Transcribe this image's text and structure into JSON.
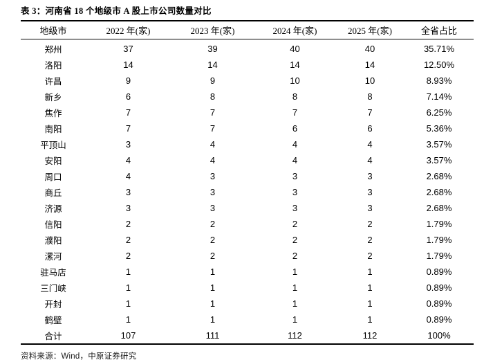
{
  "page": {
    "background_color": "#ffffff",
    "text_color": "#000000",
    "rule_color": "#000000"
  },
  "title": "表 3：河南省 18 个地级市 A 股上市公司数量对比",
  "table": {
    "columns": [
      "地级市",
      "2022 年(家)",
      "2023 年(家)",
      "2024 年(家)",
      "2025 年(家)",
      "全省占比"
    ],
    "rows": [
      {
        "city": "郑州",
        "y2022": "37",
        "y2023": "39",
        "y2024": "40",
        "y2025": "40",
        "share": "35.71%"
      },
      {
        "city": "洛阳",
        "y2022": "14",
        "y2023": "14",
        "y2024": "14",
        "y2025": "14",
        "share": "12.50%"
      },
      {
        "city": "许昌",
        "y2022": "9",
        "y2023": "9",
        "y2024": "10",
        "y2025": "10",
        "share": "8.93%"
      },
      {
        "city": "新乡",
        "y2022": "6",
        "y2023": "8",
        "y2024": "8",
        "y2025": "8",
        "share": "7.14%"
      },
      {
        "city": "焦作",
        "y2022": "7",
        "y2023": "7",
        "y2024": "7",
        "y2025": "7",
        "share": "6.25%"
      },
      {
        "city": "南阳",
        "y2022": "7",
        "y2023": "7",
        "y2024": "6",
        "y2025": "6",
        "share": "5.36%"
      },
      {
        "city": "平顶山",
        "y2022": "3",
        "y2023": "4",
        "y2024": "4",
        "y2025": "4",
        "share": "3.57%"
      },
      {
        "city": "安阳",
        "y2022": "4",
        "y2023": "4",
        "y2024": "4",
        "y2025": "4",
        "share": "3.57%"
      },
      {
        "city": "周口",
        "y2022": "4",
        "y2023": "3",
        "y2024": "3",
        "y2025": "3",
        "share": "2.68%"
      },
      {
        "city": "商丘",
        "y2022": "3",
        "y2023": "3",
        "y2024": "3",
        "y2025": "3",
        "share": "2.68%"
      },
      {
        "city": "济源",
        "y2022": "3",
        "y2023": "3",
        "y2024": "3",
        "y2025": "3",
        "share": "2.68%"
      },
      {
        "city": "信阳",
        "y2022": "2",
        "y2023": "2",
        "y2024": "2",
        "y2025": "2",
        "share": "1.79%"
      },
      {
        "city": "濮阳",
        "y2022": "2",
        "y2023": "2",
        "y2024": "2",
        "y2025": "2",
        "share": "1.79%"
      },
      {
        "city": "漯河",
        "y2022": "2",
        "y2023": "2",
        "y2024": "2",
        "y2025": "2",
        "share": "1.79%"
      },
      {
        "city": "驻马店",
        "y2022": "1",
        "y2023": "1",
        "y2024": "1",
        "y2025": "1",
        "share": "0.89%"
      },
      {
        "city": "三门峡",
        "y2022": "1",
        "y2023": "1",
        "y2024": "1",
        "y2025": "1",
        "share": "0.89%"
      },
      {
        "city": "开封",
        "y2022": "1",
        "y2023": "1",
        "y2024": "1",
        "y2025": "1",
        "share": "0.89%"
      },
      {
        "city": "鹤壁",
        "y2022": "1",
        "y2023": "1",
        "y2024": "1",
        "y2025": "1",
        "share": "0.89%"
      },
      {
        "city": "合计",
        "y2022": "107",
        "y2023": "111",
        "y2024": "112",
        "y2025": "112",
        "share": "100%"
      }
    ]
  },
  "footer": {
    "source_label": "资料来源：",
    "source_value": "Wind，中原证券研究"
  }
}
